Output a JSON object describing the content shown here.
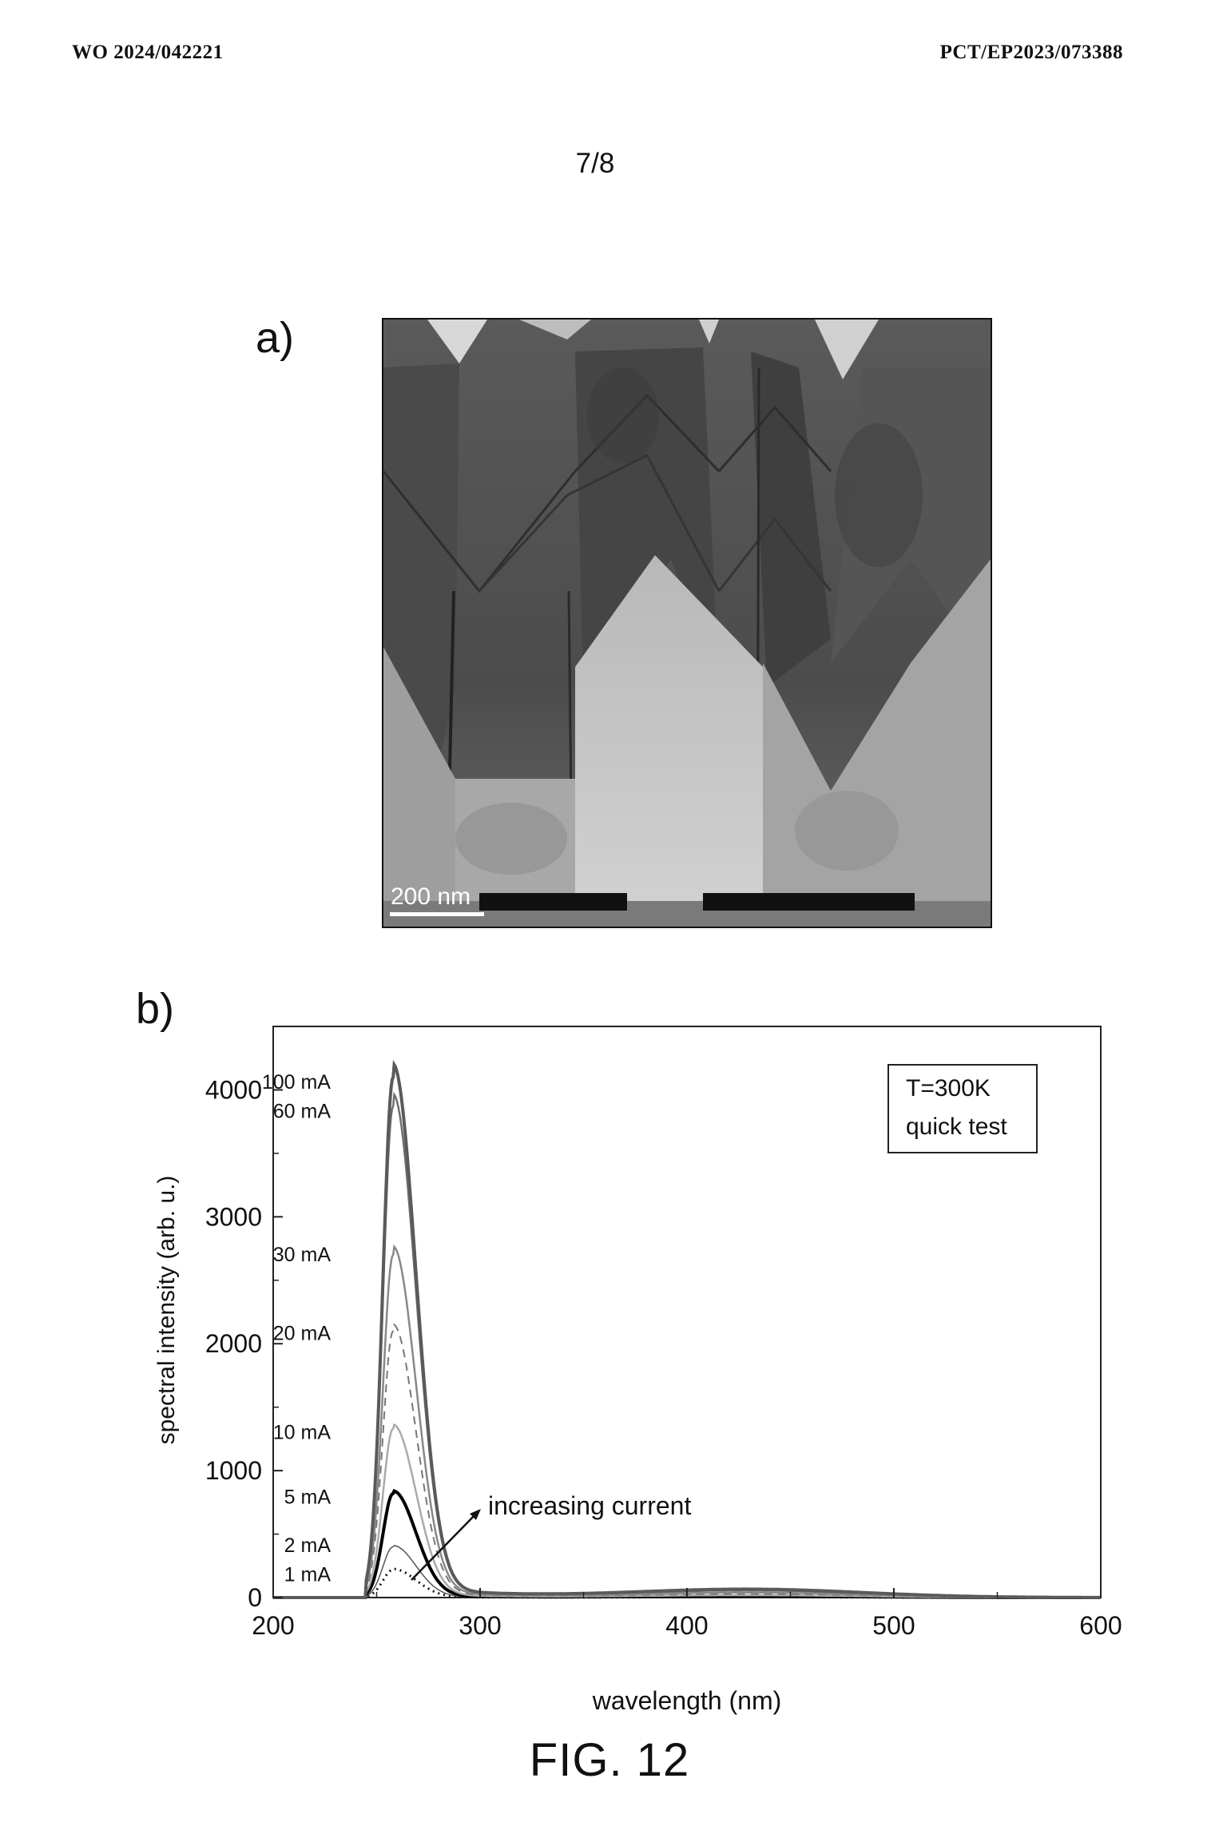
{
  "header": {
    "left": "WO 2024/042221",
    "right": "PCT/EP2023/073388"
  },
  "sheet_number": "7/8",
  "panel_a": {
    "label": "a)",
    "scale_bar_label": "200 nm"
  },
  "panel_b": {
    "label": "b)"
  },
  "figure_caption": "FIG. 12",
  "chart_data": {
    "type": "line",
    "xlabel": "wavelength (nm)",
    "ylabel": "spectral intensity (arb. u.)",
    "xlim": [
      200,
      600
    ],
    "ylim": [
      0,
      4500
    ],
    "xticks": [
      200,
      300,
      400,
      500,
      600
    ],
    "yticks": [
      0,
      1000,
      2000,
      3000,
      4000
    ],
    "grid": false,
    "legend_box": {
      "lines": [
        "T=300K",
        "quick test"
      ],
      "position": "top-right"
    },
    "annotation": {
      "text": "increasing current",
      "arrow": true
    },
    "series_common": {
      "peak_x": 258,
      "onset_x": 245,
      "secondary_peak_x": 430
    },
    "series": [
      {
        "name": "1 mA",
        "peak": 220,
        "secondary": 3,
        "color": "#111111",
        "style": "dotted"
      },
      {
        "name": "2 mA",
        "peak": 400,
        "secondary": 6,
        "color": "#555555",
        "style": "solid-thin"
      },
      {
        "name": "5 mA",
        "peak": 820,
        "secondary": 10,
        "color": "#000000",
        "style": "solid-bold"
      },
      {
        "name": "10 mA",
        "peak": 1330,
        "secondary": 18,
        "color": "#aaaaaa",
        "style": "solid"
      },
      {
        "name": "20 mA",
        "peak": 2100,
        "secondary": 28,
        "color": "#777777",
        "style": "dashed"
      },
      {
        "name": "30 mA",
        "peak": 2700,
        "secondary": 38,
        "color": "#888888",
        "style": "solid"
      },
      {
        "name": "60 mA",
        "peak": 3870,
        "secondary": 55,
        "color": "#6e6e6e",
        "style": "solid"
      },
      {
        "name": "100 mA",
        "peak": 4100,
        "secondary": 65,
        "color": "#5a5a5a",
        "style": "solid-bold"
      }
    ]
  }
}
